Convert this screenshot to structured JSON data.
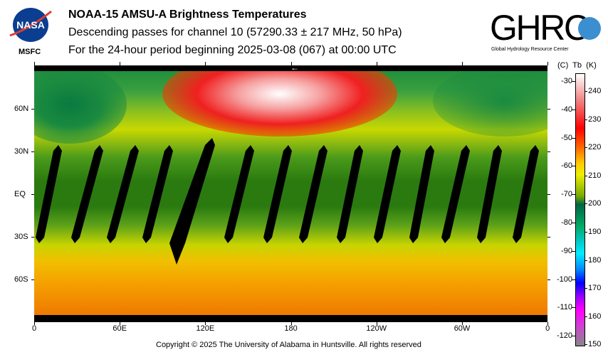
{
  "header": {
    "title": "NOAA-15 AMSU-A Brightness Temperatures",
    "subtitle": "Descending passes for channel 10 (57290.33 ± 217 MHz, 50 hPa)",
    "period": "For the 24-hour period beginning 2025-03-08 (067) at 00:00 UTC"
  },
  "logos": {
    "left": "NASA",
    "left_caption": "MSFC",
    "right": "GHRC",
    "right_caption": "Global Hydrology Resource Center"
  },
  "map": {
    "lon_labels": [
      "0",
      "60E",
      "120E",
      "180",
      "120W",
      "60W",
      "0"
    ],
    "lat_labels": [
      "60N",
      "30N",
      "EQ",
      "30S",
      "60S"
    ],
    "direction_arrow": "←"
  },
  "colorbar": {
    "header": "(C)  Tb  (K)",
    "celsius_labels": [
      "-30",
      "-40",
      "-50",
      "-60",
      "-70",
      "-80",
      "-90",
      "-100",
      "-110",
      "-120"
    ],
    "kelvin_labels": [
      "240",
      "230",
      "220",
      "210",
      "200",
      "190",
      "180",
      "170",
      "160",
      "150"
    ],
    "range_k": [
      150,
      246
    ]
  },
  "footer": {
    "copyright": "Copyright © 2025 The University of Alabama in Huntsville.  All rights reserved"
  }
}
